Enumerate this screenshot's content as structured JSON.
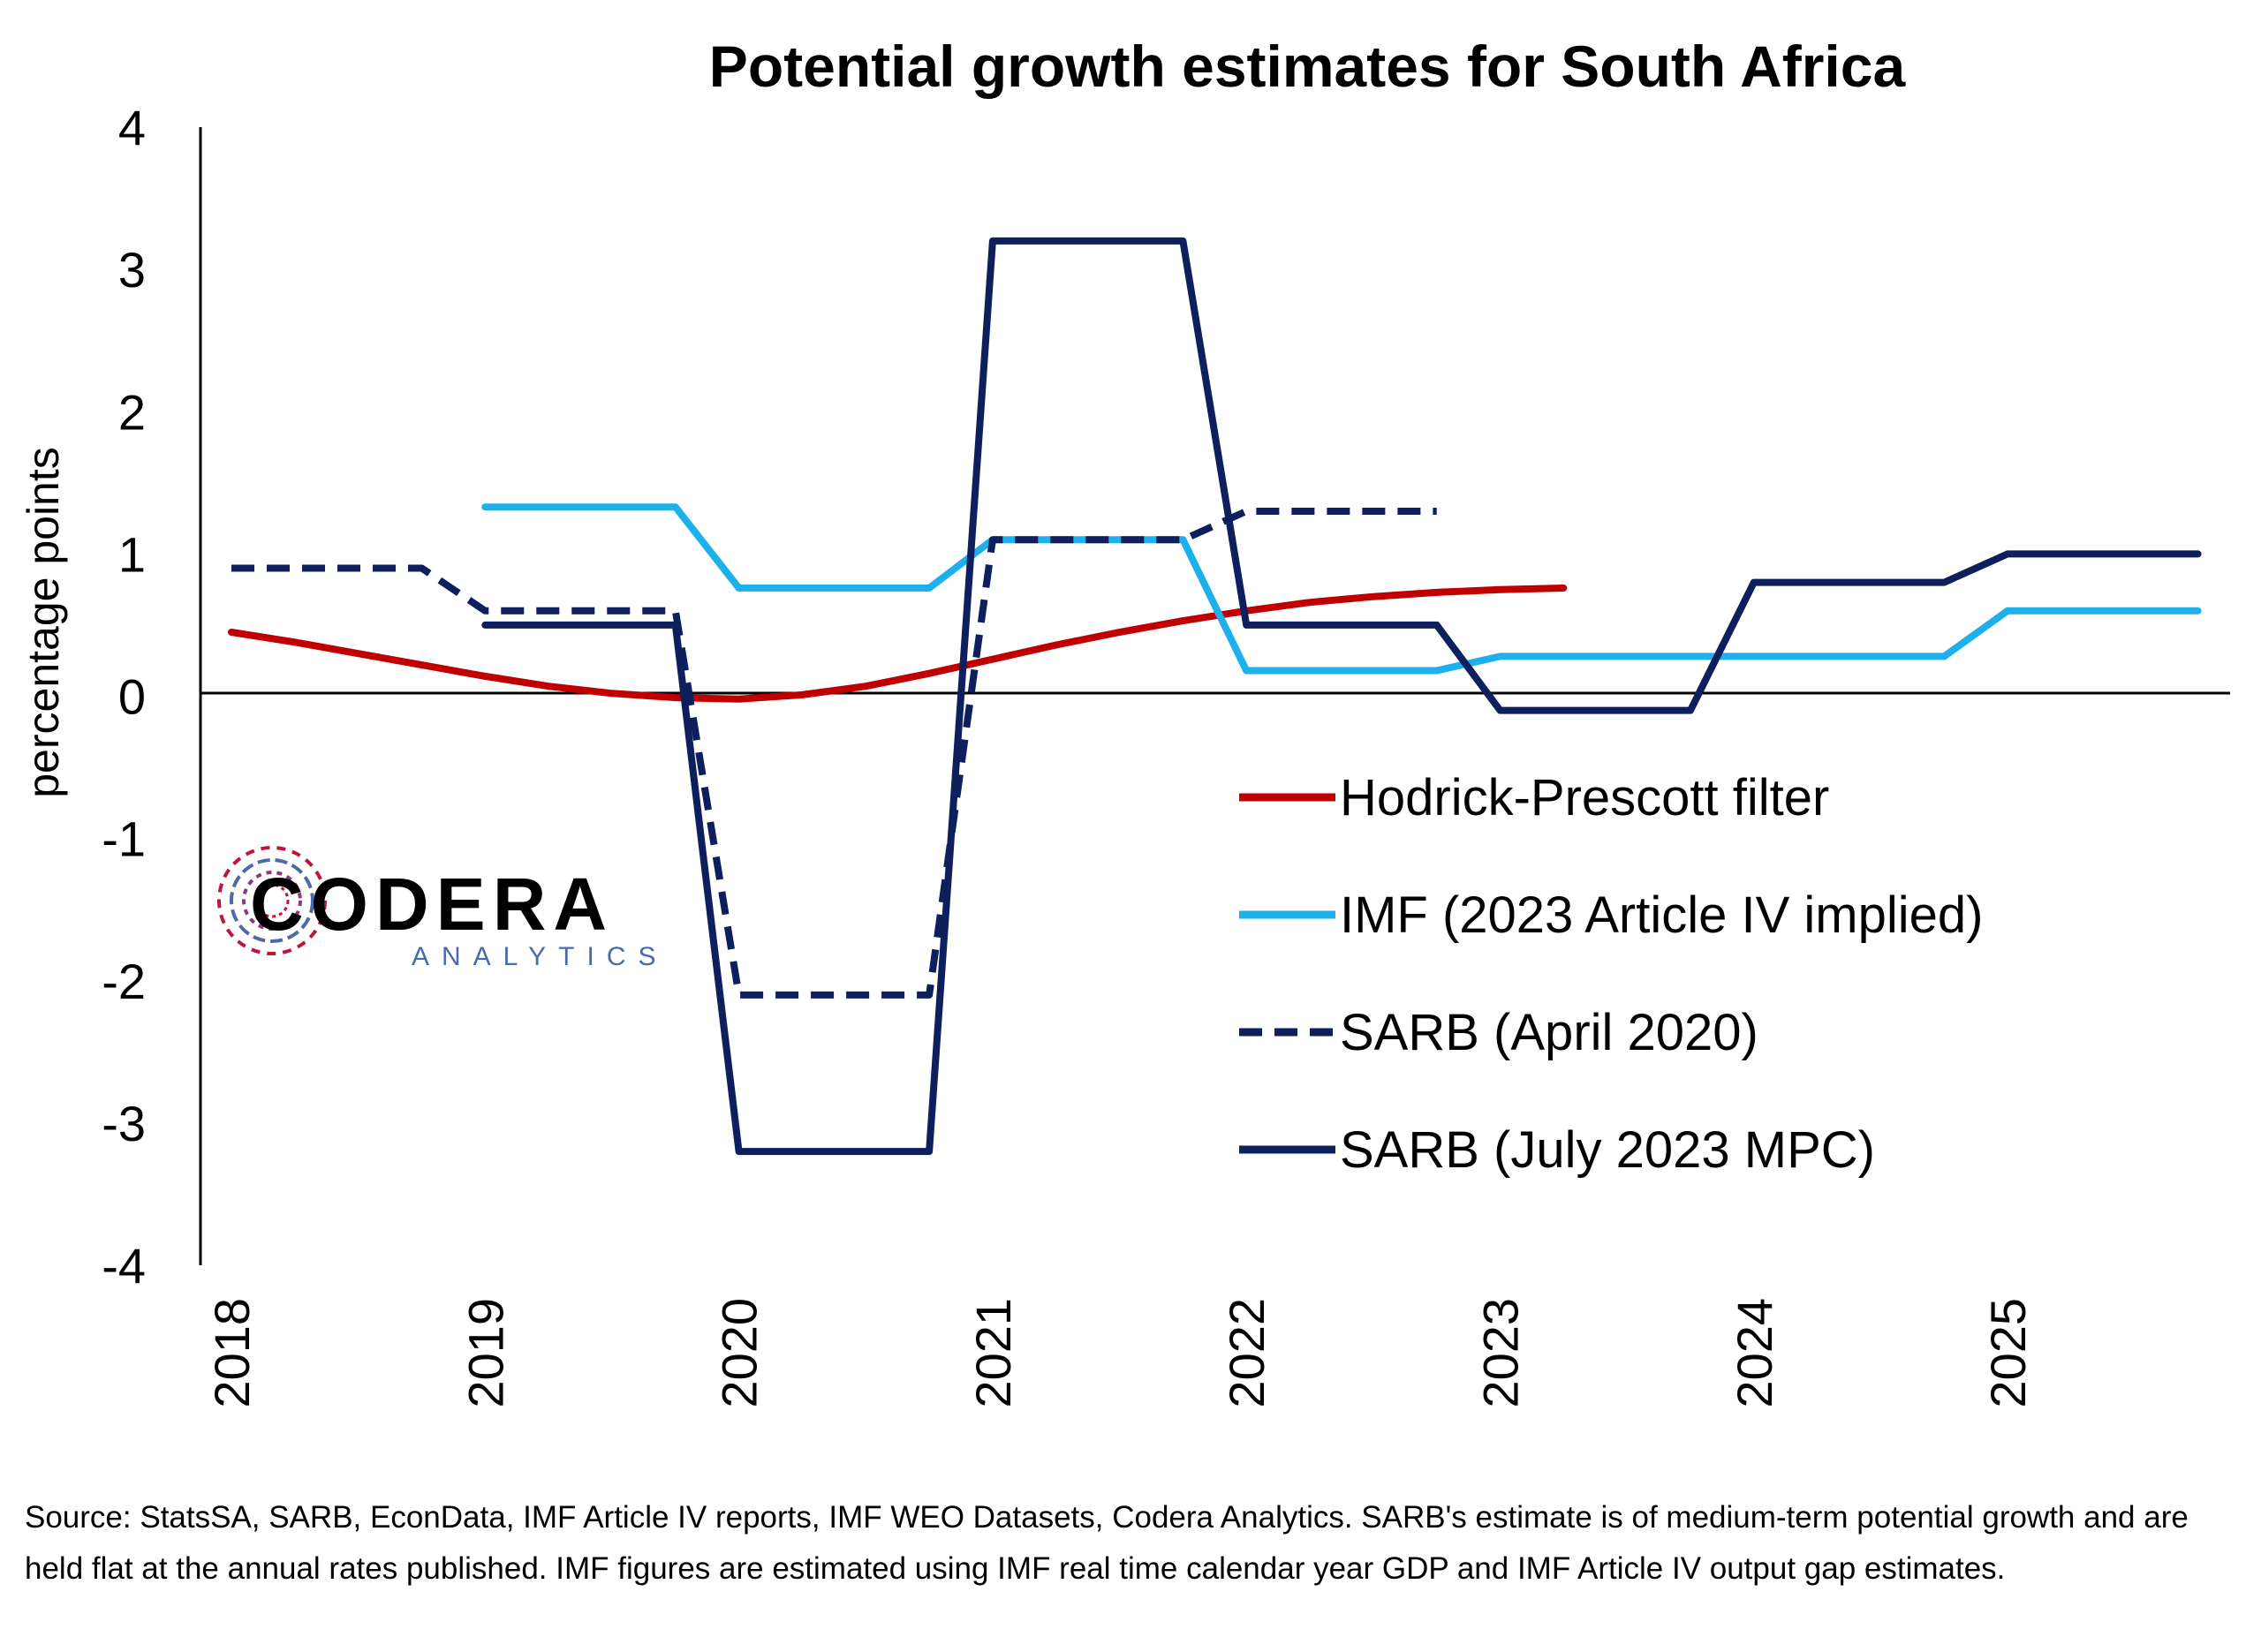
{
  "chart_data": {
    "type": "line",
    "title": "Potential growth estimates for South Africa",
    "xlabel": "",
    "ylabel": "percentage points",
    "xlim": [
      "2018-01",
      "2025-12"
    ],
    "ylim": [
      -4,
      4
    ],
    "y_ticks": [
      -4,
      -3,
      -2,
      -1,
      0,
      1,
      2,
      3,
      4
    ],
    "x_ticks": [
      "2018",
      "2019",
      "2020",
      "2021",
      "2022",
      "2023",
      "2024",
      "2025"
    ],
    "x_tick_dates": [
      "2018-01",
      "2019-01",
      "2020-01",
      "2021-01",
      "2022-01",
      "2023-01",
      "2024-01",
      "2025-01"
    ],
    "zero_line": true,
    "grid": false,
    "legend_position": "right",
    "series": [
      {
        "name": "Hodrick-Prescott filter",
        "color": "#c00000",
        "dash": "solid",
        "points": [
          [
            "2018-01",
            0.45
          ],
          [
            "2018-04",
            0.38
          ],
          [
            "2018-07",
            0.3
          ],
          [
            "2018-10",
            0.22
          ],
          [
            "2019-01",
            0.14
          ],
          [
            "2019-04",
            0.07
          ],
          [
            "2019-07",
            0.02
          ],
          [
            "2019-10",
            -0.01
          ],
          [
            "2020-01",
            -0.02
          ],
          [
            "2020-04",
            0.01
          ],
          [
            "2020-07",
            0.07
          ],
          [
            "2020-10",
            0.16
          ],
          [
            "2021-01",
            0.26
          ],
          [
            "2021-04",
            0.36
          ],
          [
            "2021-07",
            0.45
          ],
          [
            "2021-10",
            0.53
          ],
          [
            "2022-01",
            0.6
          ],
          [
            "2022-04",
            0.66
          ],
          [
            "2022-07",
            0.7
          ],
          [
            "2022-10",
            0.73
          ],
          [
            "2023-01",
            0.75
          ],
          [
            "2023-04",
            0.76
          ]
        ]
      },
      {
        "name": "IMF (2023 Article IV implied)",
        "color": "#1eb0ea",
        "dash": "solid",
        "points": [
          [
            "2019-01",
            1.33
          ],
          [
            "2019-10",
            1.33
          ],
          [
            "2020-01",
            0.76
          ],
          [
            "2020-10",
            0.76
          ],
          [
            "2021-01",
            1.1
          ],
          [
            "2021-10",
            1.1
          ],
          [
            "2022-01",
            0.18
          ],
          [
            "2022-10",
            0.18
          ],
          [
            "2023-01",
            0.28
          ],
          [
            "2024-10",
            0.28
          ],
          [
            "2025-01",
            0.6
          ],
          [
            "2025-10",
            0.6
          ]
        ]
      },
      {
        "name": "SARB (April 2020)",
        "color": "#0d1f5c",
        "dash": "dashed",
        "points": [
          [
            "2018-01",
            0.9
          ],
          [
            "2018-10",
            0.9
          ],
          [
            "2019-01",
            0.6
          ],
          [
            "2019-10",
            0.6
          ],
          [
            "2020-01",
            -2.1
          ],
          [
            "2020-10",
            -2.1
          ],
          [
            "2021-01",
            1.1
          ],
          [
            "2021-10",
            1.1
          ],
          [
            "2022-01",
            1.3
          ],
          [
            "2022-10",
            1.3
          ]
        ]
      },
      {
        "name": "SARB (July 2023 MPC)",
        "color": "#0d1f5c",
        "dash": "solid",
        "points": [
          [
            "2019-01",
            0.5
          ],
          [
            "2019-10",
            0.5
          ],
          [
            "2020-01",
            -3.2
          ],
          [
            "2020-10",
            -3.2
          ],
          [
            "2021-01",
            3.2
          ],
          [
            "2021-10",
            3.2
          ],
          [
            "2022-01",
            0.5
          ],
          [
            "2022-10",
            0.5
          ],
          [
            "2023-01",
            -0.1
          ],
          [
            "2023-10",
            -0.1
          ],
          [
            "2024-01",
            0.8
          ],
          [
            "2024-10",
            0.8
          ],
          [
            "2025-01",
            1.0
          ],
          [
            "2025-10",
            1.0
          ]
        ]
      }
    ]
  },
  "logo": {
    "main": "CODERA",
    "sub": "ANALYTICS",
    "colors": [
      "#c0143c",
      "#4a6aa8",
      "#8a3a7a"
    ]
  },
  "source_note": "Source: StatsSA, SARB, EconData, IMF Article IV reports, IMF WEO Datasets, Codera Analytics. SARB's estimate is of medium-term potential growth and are held flat at the annual rates published.  IMF figures are estimated using IMF real time calendar year GDP and IMF Article IV output gap estimates."
}
